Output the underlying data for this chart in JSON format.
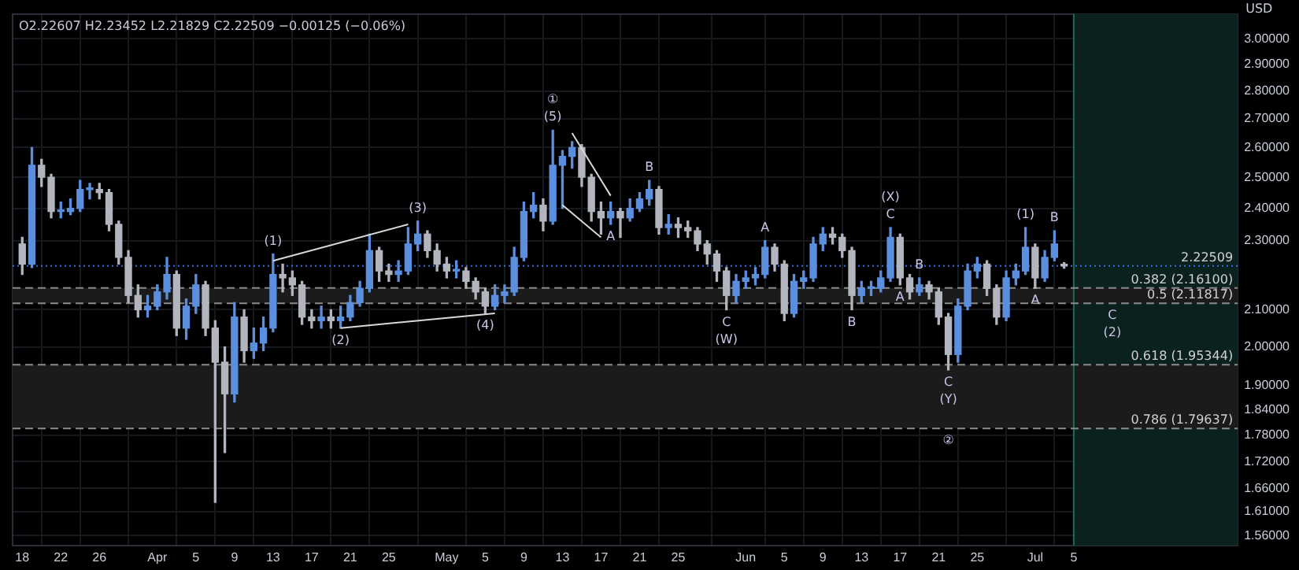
{
  "chart_data": {
    "type": "candlestick",
    "ylabel": "USD",
    "log": true,
    "grid": true,
    "legend": false,
    "xlim": [
      "--03-17",
      "--07-22"
    ],
    "ylim": [
      1.54,
      3.1
    ],
    "xticks": [
      {
        "value": "--03-18",
        "label": "18"
      },
      {
        "value": "--03-22",
        "label": "22"
      },
      {
        "value": "--03-26",
        "label": "26"
      },
      {
        "value": "--04-01",
        "label": "Apr"
      },
      {
        "value": "--04-05",
        "label": "5"
      },
      {
        "value": "--04-09",
        "label": "9"
      },
      {
        "value": "--04-13",
        "label": "13"
      },
      {
        "value": "--04-17",
        "label": "17"
      },
      {
        "value": "--04-21",
        "label": "21"
      },
      {
        "value": "--04-25",
        "label": "25"
      },
      {
        "value": "--05-01",
        "label": "May"
      },
      {
        "value": "--05-05",
        "label": "5"
      },
      {
        "value": "--05-09",
        "label": "9"
      },
      {
        "value": "--05-13",
        "label": "13"
      },
      {
        "value": "--05-17",
        "label": "17"
      },
      {
        "value": "--05-21",
        "label": "21"
      },
      {
        "value": "--05-25",
        "label": "25"
      },
      {
        "value": "--06-01",
        "label": "Jun"
      },
      {
        "value": "--06-05",
        "label": "5"
      },
      {
        "value": "--06-09",
        "label": "9"
      },
      {
        "value": "--06-13",
        "label": "13"
      },
      {
        "value": "--06-17",
        "label": "17"
      },
      {
        "value": "--06-21",
        "label": "21"
      },
      {
        "value": "--06-25",
        "label": "25"
      },
      {
        "value": "--07-01",
        "label": "Jul"
      },
      {
        "value": "--07-05",
        "label": "5"
      }
    ],
    "yticks": [
      {
        "value": 3,
        "label": "3.00000"
      },
      {
        "value": 2.9,
        "label": "2.90000"
      },
      {
        "value": 2.8,
        "label": "2.80000"
      },
      {
        "value": 2.7,
        "label": "2.70000"
      },
      {
        "value": 2.6,
        "label": "2.60000"
      },
      {
        "value": 2.5,
        "label": "2.50000"
      },
      {
        "value": 2.4,
        "label": "2.40000"
      },
      {
        "value": 2.3,
        "label": "2.30000"
      },
      {
        "value": 2.1,
        "label": "2.10000"
      },
      {
        "value": 2,
        "label": "2.00000"
      },
      {
        "value": 1.9,
        "label": "1.90000"
      },
      {
        "value": 1.84,
        "label": "1.84000"
      },
      {
        "value": 1.78,
        "label": "1.78000"
      },
      {
        "value": 1.72,
        "label": "1.72000"
      },
      {
        "value": 1.66,
        "label": "1.66000"
      },
      {
        "value": 1.61,
        "label": "1.61000"
      },
      {
        "value": 1.56,
        "label": "1.56000"
      }
    ],
    "series": [
      {
        "colors": [
          "#b2b5be",
          "#5b8fde",
          "#b2b5be",
          "#b2b5be",
          "#5b8fde",
          "#5b8fde",
          "#5b8fde",
          "#5b8fde",
          "#b2b5be",
          "#b2b5be",
          "#b2b5be",
          "#b2b5be",
          "#b2b5be",
          "#5b8fde",
          "#5b8fde",
          "#5b8fde",
          "#b2b5be",
          "#5b8fde",
          "#5b8fde",
          "#b2b5be",
          "#b2b5be",
          "#b2b5be",
          "#5b8fde",
          "#b2b5be",
          "#5b8fde",
          "#5b8fde",
          "#5b8fde",
          "#b2b5be",
          "#b2b5be",
          "#b2b5be",
          "#b2b5be",
          "#5b8fde",
          "#b2b5be",
          "#5b8fde",
          "#5b8fde",
          "#5b8fde",
          "#5b8fde",
          "#b2b5be",
          "#b2b5be",
          "#5b8fde",
          "#5b8fde",
          "#5b8fde",
          "#b2b5be",
          "#b2b5be",
          "#b2b5be",
          "#5b8fde",
          "#b2b5be",
          "#b2b5be",
          "#b2b5be",
          "#5b8fde",
          "#5b8fde",
          "#5b8fde",
          "#5b8fde",
          "#5b8fde",
          "#b2b5be",
          "#5b8fde",
          "#5b8fde",
          "#5b8fde",
          "#b2b5be",
          "#b2b5be",
          "#b2b5be",
          "#5b8fde",
          "#b2b5be",
          "#5b8fde",
          "#5b8fde",
          "#5b8fde",
          "#b2b5be",
          "#5b8fde",
          "#b2b5be",
          "#b2b5be",
          "#b2b5be",
          "#b2b5be",
          "#b2b5be",
          "#b2b5be",
          "#5b8fde",
          "#5b8fde",
          "#5b8fde",
          "#5b8fde",
          "#b2b5be",
          "#b2b5be",
          "#5b8fde",
          "#5b8fde",
          "#5b8fde",
          "#5b8fde",
          "#b2b5be",
          "#b2b5be",
          "#b2b5be",
          "#5b8fde",
          "#5b8fde",
          "#5b8fde",
          "#5b8fde",
          "#b2b5be",
          "#b2b5be",
          "#5b8fde",
          "#b2b5be",
          "#b2b5be",
          "#b2b5be",
          "#5b8fde",
          "#5b8fde",
          "#5b8fde",
          "#b2b5be",
          "#b2b5be",
          "#5b8fde",
          "#5b8fde",
          "#5b8fde",
          "#b2b5be",
          "#5b8fde",
          "#5b8fde",
          "#b2b5be"
        ],
        "x": [
          "--03-18",
          "--03-19",
          "--03-20",
          "--03-21",
          "--03-22",
          "--03-23",
          "--03-24",
          "--03-25",
          "--03-26",
          "--03-27",
          "--03-28",
          "--03-29",
          "--03-30",
          "--03-31",
          "--04-01",
          "--04-02",
          "--04-03",
          "--04-04",
          "--04-05",
          "--04-06",
          "--04-07",
          "--04-08",
          "--04-09",
          "--04-10",
          "--04-11",
          "--04-12",
          "--04-13",
          "--04-14",
          "--04-15",
          "--04-16",
          "--04-17",
          "--04-18",
          "--04-19",
          "--04-20",
          "--04-21",
          "--04-22",
          "--04-23",
          "--04-24",
          "--04-25",
          "--04-26",
          "--04-27",
          "--04-28",
          "--04-29",
          "--04-30",
          "--05-01",
          "--05-02",
          "--05-03",
          "--05-04",
          "--05-05",
          "--05-06",
          "--05-07",
          "--05-08",
          "--05-09",
          "--05-10",
          "--05-11",
          "--05-12",
          "--05-13",
          "--05-14",
          "--05-15",
          "--05-16",
          "--05-17",
          "--05-18",
          "--05-19",
          "--05-20",
          "--05-21",
          "--05-22",
          "--05-23",
          "--05-24",
          "--05-25",
          "--05-26",
          "--05-27",
          "--05-28",
          "--05-29",
          "--05-30",
          "--05-31",
          "--06-01",
          "--06-02",
          "--06-03",
          "--06-04",
          "--06-05",
          "--06-06",
          "--06-07",
          "--06-08",
          "--06-09",
          "--06-10",
          "--06-11",
          "--06-12",
          "--06-13",
          "--06-14",
          "--06-15",
          "--06-16",
          "--06-17",
          "--06-18",
          "--06-19",
          "--06-20",
          "--06-21",
          "--06-22",
          "--06-23",
          "--06-24",
          "--06-25",
          "--06-26",
          "--06-27",
          "--06-28",
          "--06-29",
          "--06-30",
          "--07-01",
          "--07-02",
          "--07-03",
          "--07-04"
        ],
        "ohlc": [
          [
            2.29,
            2.31,
            2.2,
            2.23
          ],
          [
            2.23,
            2.6,
            2.22,
            2.54
          ],
          [
            2.54,
            2.56,
            2.47,
            2.5
          ],
          [
            2.5,
            2.51,
            2.37,
            2.39
          ],
          [
            2.39,
            2.42,
            2.37,
            2.39
          ],
          [
            2.39,
            2.43,
            2.38,
            2.4
          ],
          [
            2.4,
            2.49,
            2.39,
            2.46
          ],
          [
            2.46,
            2.48,
            2.43,
            2.46
          ],
          [
            2.46,
            2.48,
            2.43,
            2.45
          ],
          [
            2.45,
            2.46,
            2.33,
            2.35
          ],
          [
            2.35,
            2.36,
            2.23,
            2.25
          ],
          [
            2.25,
            2.27,
            2.12,
            2.14
          ],
          [
            2.14,
            2.17,
            2.08,
            2.1
          ],
          [
            2.1,
            2.14,
            2.08,
            2.11
          ],
          [
            2.11,
            2.17,
            2.1,
            2.15
          ],
          [
            2.15,
            2.25,
            2.13,
            2.2
          ],
          [
            2.2,
            2.21,
            2.03,
            2.05
          ],
          [
            2.05,
            2.13,
            2.02,
            2.11
          ],
          [
            2.11,
            2.2,
            2.09,
            2.17
          ],
          [
            2.17,
            2.18,
            2.03,
            2.05
          ],
          [
            2.05,
            2.07,
            1.63,
            1.96
          ],
          [
            1.96,
            2.0,
            1.74,
            1.88
          ],
          [
            1.88,
            2.12,
            1.86,
            2.08
          ],
          [
            2.08,
            2.1,
            1.96,
            1.99
          ],
          [
            1.99,
            2.05,
            1.97,
            2.01
          ],
          [
            2.01,
            2.08,
            1.99,
            2.05
          ],
          [
            2.05,
            2.26,
            2.04,
            2.2
          ],
          [
            2.2,
            2.23,
            2.15,
            2.19
          ],
          [
            2.19,
            2.21,
            2.14,
            2.17
          ],
          [
            2.17,
            2.18,
            2.06,
            2.08
          ],
          [
            2.08,
            2.1,
            2.05,
            2.07
          ],
          [
            2.07,
            2.11,
            2.05,
            2.08
          ],
          [
            2.08,
            2.1,
            2.05,
            2.07
          ],
          [
            2.07,
            2.11,
            2.05,
            2.08
          ],
          [
            2.08,
            2.14,
            2.07,
            2.12
          ],
          [
            2.12,
            2.18,
            2.11,
            2.16
          ],
          [
            2.16,
            2.32,
            2.15,
            2.27
          ],
          [
            2.27,
            2.28,
            2.18,
            2.21
          ],
          [
            2.21,
            2.23,
            2.18,
            2.2
          ],
          [
            2.2,
            2.24,
            2.18,
            2.21
          ],
          [
            2.21,
            2.34,
            2.2,
            2.29
          ],
          [
            2.29,
            2.36,
            2.27,
            2.32
          ],
          [
            2.32,
            2.33,
            2.25,
            2.27
          ],
          [
            2.27,
            2.29,
            2.21,
            2.23
          ],
          [
            2.23,
            2.25,
            2.19,
            2.21
          ],
          [
            2.21,
            2.24,
            2.19,
            2.21
          ],
          [
            2.21,
            2.22,
            2.16,
            2.18
          ],
          [
            2.18,
            2.19,
            2.13,
            2.15
          ],
          [
            2.15,
            2.16,
            2.09,
            2.11
          ],
          [
            2.11,
            2.17,
            2.1,
            2.14
          ],
          [
            2.14,
            2.17,
            2.12,
            2.15
          ],
          [
            2.15,
            2.28,
            2.14,
            2.25
          ],
          [
            2.25,
            2.42,
            2.24,
            2.39
          ],
          [
            2.39,
            2.45,
            2.37,
            2.41
          ],
          [
            2.41,
            2.43,
            2.33,
            2.36
          ],
          [
            2.36,
            2.66,
            2.35,
            2.54
          ],
          [
            2.54,
            2.59,
            2.4,
            2.57
          ],
          [
            2.57,
            2.62,
            2.53,
            2.6
          ],
          [
            2.6,
            2.61,
            2.47,
            2.5
          ],
          [
            2.5,
            2.51,
            2.36,
            2.39
          ],
          [
            2.39,
            2.42,
            2.32,
            2.37
          ],
          [
            2.37,
            2.42,
            2.35,
            2.39
          ],
          [
            2.39,
            2.4,
            2.31,
            2.37
          ],
          [
            2.37,
            2.43,
            2.36,
            2.4
          ],
          [
            2.4,
            2.45,
            2.39,
            2.43
          ],
          [
            2.43,
            2.49,
            2.41,
            2.46
          ],
          [
            2.46,
            2.47,
            2.32,
            2.34
          ],
          [
            2.34,
            2.38,
            2.32,
            2.35
          ],
          [
            2.35,
            2.37,
            2.31,
            2.34
          ],
          [
            2.34,
            2.36,
            2.31,
            2.33
          ],
          [
            2.33,
            2.34,
            2.27,
            2.29
          ],
          [
            2.29,
            2.3,
            2.23,
            2.26
          ],
          [
            2.26,
            2.27,
            2.18,
            2.21
          ],
          [
            2.21,
            2.22,
            2.1,
            2.14
          ],
          [
            2.14,
            2.2,
            2.12,
            2.18
          ],
          [
            2.18,
            2.21,
            2.16,
            2.19
          ],
          [
            2.19,
            2.22,
            2.17,
            2.2
          ],
          [
            2.2,
            2.3,
            2.19,
            2.28
          ],
          [
            2.28,
            2.29,
            2.21,
            2.23
          ],
          [
            2.23,
            2.24,
            2.07,
            2.09
          ],
          [
            2.09,
            2.2,
            2.08,
            2.18
          ],
          [
            2.18,
            2.21,
            2.16,
            2.19
          ],
          [
            2.19,
            2.31,
            2.18,
            2.29
          ],
          [
            2.29,
            2.34,
            2.27,
            2.32
          ],
          [
            2.32,
            2.34,
            2.29,
            2.31
          ],
          [
            2.31,
            2.32,
            2.25,
            2.27
          ],
          [
            2.27,
            2.28,
            2.1,
            2.14
          ],
          [
            2.14,
            2.18,
            2.12,
            2.16
          ],
          [
            2.16,
            2.18,
            2.14,
            2.16
          ],
          [
            2.16,
            2.21,
            2.15,
            2.19
          ],
          [
            2.19,
            2.34,
            2.18,
            2.31
          ],
          [
            2.31,
            2.32,
            2.17,
            2.19
          ],
          [
            2.19,
            2.2,
            2.13,
            2.15
          ],
          [
            2.15,
            2.19,
            2.14,
            2.17
          ],
          [
            2.17,
            2.18,
            2.13,
            2.15
          ],
          [
            2.15,
            2.16,
            2.06,
            2.08
          ],
          [
            2.08,
            2.09,
            1.94,
            1.98
          ],
          [
            1.98,
            2.13,
            1.96,
            2.11
          ],
          [
            2.11,
            2.23,
            2.1,
            2.21
          ],
          [
            2.21,
            2.25,
            2.19,
            2.23
          ],
          [
            2.23,
            2.24,
            2.14,
            2.16
          ],
          [
            2.16,
            2.17,
            2.06,
            2.08
          ],
          [
            2.08,
            2.21,
            2.07,
            2.19
          ],
          [
            2.19,
            2.23,
            2.17,
            2.21
          ],
          [
            2.21,
            2.34,
            2.2,
            2.28
          ],
          [
            2.28,
            2.29,
            2.16,
            2.19
          ],
          [
            2.19,
            2.27,
            2.18,
            2.25
          ],
          [
            2.25,
            2.33,
            2.24,
            2.29
          ],
          [
            2.22607,
            2.23452,
            2.21829,
            2.22509
          ]
        ]
      },
      {
        "type": "line",
        "color": "#d9d9d9",
        "x": [
          "--04-13",
          "--04-27"
        ],
        "values": [
          2.24,
          2.35
        ]
      },
      {
        "type": "line",
        "color": "#d9d9d9",
        "x": [
          "--04-20",
          "--05-06"
        ],
        "values": [
          2.05,
          2.09
        ]
      },
      {
        "type": "line",
        "color": "#d9d9d9",
        "x": [
          "--05-14",
          "--05-18"
        ],
        "values": [
          2.65,
          2.44
        ]
      },
      {
        "type": "line",
        "color": "#d9d9d9",
        "x": [
          "--05-13",
          "--05-17"
        ],
        "values": [
          2.41,
          2.31
        ]
      }
    ],
    "bands": [
      {
        "axis": "x",
        "from": "--07-05",
        "to": "--07-22",
        "color": "#0b211d"
      },
      {
        "axis": "y",
        "from": 1.79637,
        "to": 1.95344,
        "color": "#1b1b1b"
      },
      {
        "axis": "y",
        "from": 2.11817,
        "to": 2.161,
        "color": "#1b1b1b"
      }
    ],
    "ref_lines": [
      {
        "axis": "x",
        "value": "--07-05",
        "color": "#1f6b5e"
      },
      {
        "axis": "y",
        "value": 2.22509,
        "label": "2.22509",
        "color": "#2f6fe8",
        "line_style": "dotted"
      },
      {
        "axis": "y",
        "value": 2.161,
        "label": "0.382 (2.16100)",
        "color": "#8a8a8a",
        "line_style": "dashed"
      },
      {
        "axis": "y",
        "value": 2.11817,
        "label": "0.5 (2.11817)",
        "color": "#8a8a8a",
        "line_style": "dashed"
      },
      {
        "axis": "y",
        "value": 1.95344,
        "label": "0.618 (1.95344)",
        "color": "#8a8a8a",
        "line_style": "dashed"
      },
      {
        "axis": "y",
        "value": 1.79637,
        "label": "0.786 (1.79637)",
        "color": "#8a8a8a",
        "line_style": "dashed"
      }
    ],
    "annotations": [
      "O2.22607 H2.23452 L2.21829 C2.22509 −0.00125 (−0.06%)",
      {
        "text": "(5)",
        "x": "--05-12",
        "y": 2.66
      },
      {
        "text": "①",
        "x": "--05-12",
        "y": 2.66
      },
      {
        "text": "B",
        "x": "--05-22",
        "y": 2.49
      },
      {
        "text": "A",
        "x": "--05-18",
        "y": 2.35
      },
      {
        "text": "(1)",
        "x": "--04-13",
        "y": 2.26
      },
      {
        "text": "(2)",
        "x": "--04-20",
        "y": 2.05
      },
      {
        "text": "(3)",
        "x": "--04-28",
        "y": 2.36
      },
      {
        "text": "(4)",
        "x": "--05-05",
        "y": 2.09
      },
      {
        "text": "C",
        "x": "--05-30",
        "y": 2.1
      },
      {
        "text": "(W)",
        "x": "--05-30",
        "y": 2.1
      },
      {
        "text": "A",
        "x": "--06-03",
        "y": 2.3
      },
      {
        "text": "B",
        "x": "--06-12",
        "y": 2.1
      },
      {
        "text": "C",
        "x": "--06-16",
        "y": 2.34
      },
      {
        "text": "(X)",
        "x": "--06-16",
        "y": 2.34
      },
      {
        "text": "A",
        "x": "--06-17",
        "y": 2.17
      },
      {
        "text": "B",
        "x": "--06-19",
        "y": 2.19
      },
      {
        "text": "C",
        "x": "--06-22",
        "y": 1.94
      },
      {
        "text": "(Y)",
        "x": "--06-22",
        "y": 1.94
      },
      {
        "text": "②",
        "x": "--06-22",
        "y": 1.79637
      },
      {
        "text": "(1)",
        "x": "--06-30",
        "y": 2.34
      },
      {
        "text": "B",
        "x": "--07-03",
        "y": 2.33
      },
      {
        "text": "A",
        "x": "--07-01",
        "y": 2.16
      },
      {
        "text": "C",
        "x": "--07-09",
        "y": 2.11817
      },
      {
        "text": "(2)",
        "x": "--07-09",
        "y": 2.11817
      }
    ]
  }
}
